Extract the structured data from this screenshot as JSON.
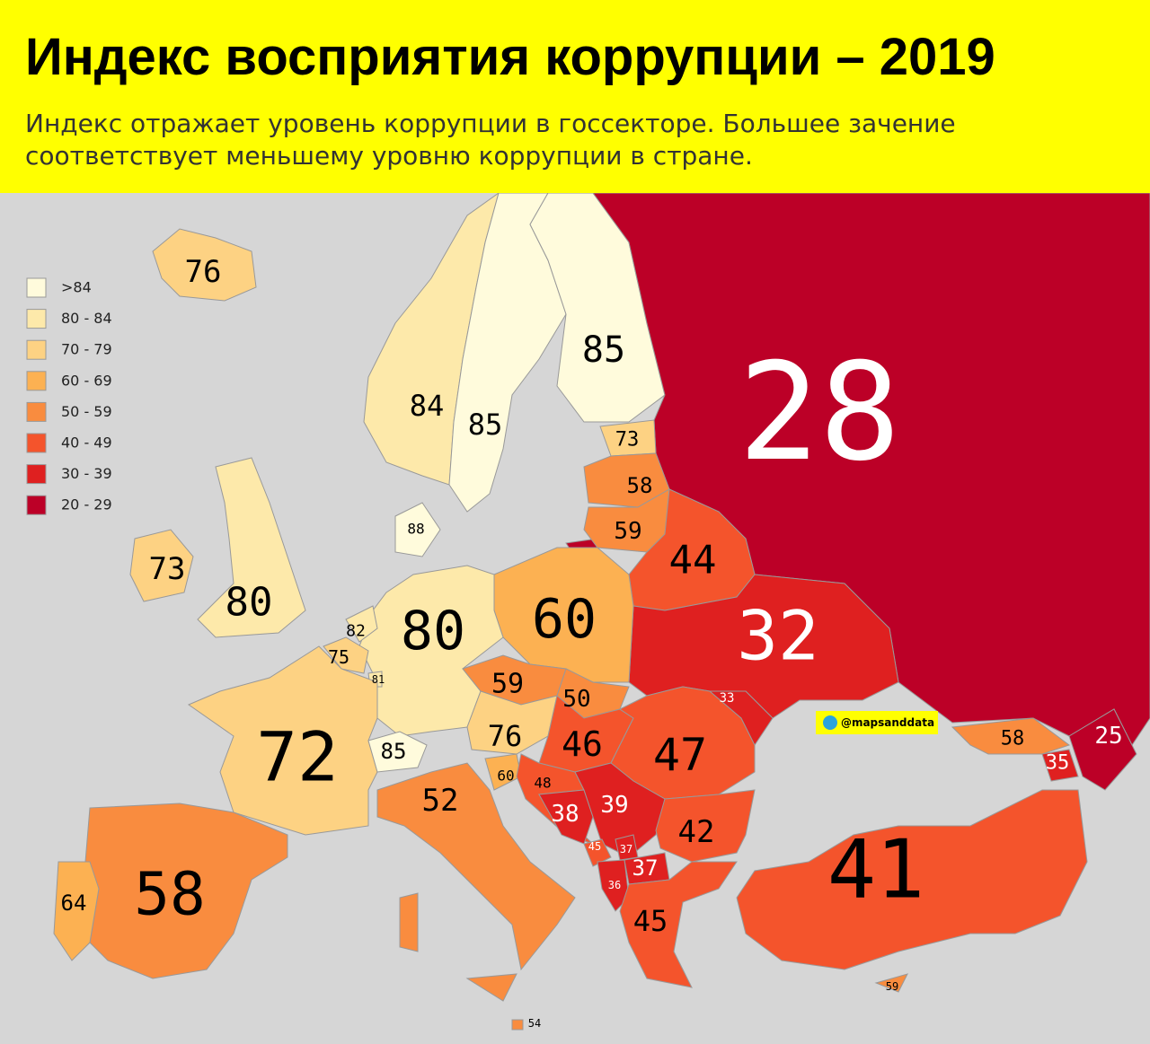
{
  "header": {
    "title": "Индекс восприятия коррупции – 2019",
    "subtitle": "Индекс отражает уровень коррупции в госсекторе. Большее зачение соответствует меньшему уровню коррупции в стране."
  },
  "legend": [
    {
      "label": ">84",
      "color": "#fffbdc"
    },
    {
      "label": "80 - 84",
      "color": "#fde9aa"
    },
    {
      "label": "70 - 79",
      "color": "#fdd283"
    },
    {
      "label": "60 - 69",
      "color": "#fcb152"
    },
    {
      "label": "50 - 59",
      "color": "#f98c3f"
    },
    {
      "label": "40 - 49",
      "color": "#f4542c"
    },
    {
      "label": "30 - 39",
      "color": "#df2020"
    },
    {
      "label": "20 - 29",
      "color": "#bc0027"
    }
  ],
  "regions": [
    {
      "value": "76",
      "color": "#fdd283"
    },
    {
      "value": "84",
      "color": "#fde9aa"
    },
    {
      "value": "85",
      "color": "#fffbdc"
    },
    {
      "value": "85",
      "color": "#fffbdc"
    },
    {
      "value": "28",
      "color": "#bc0027"
    },
    {
      "value": "73",
      "color": "#fdd283"
    },
    {
      "value": "58",
      "color": "#f98c3f"
    },
    {
      "value": "59",
      "color": "#f98c3f"
    },
    {
      "value": "44",
      "color": "#f4542c"
    },
    {
      "value": "32",
      "color": "#df2020"
    },
    {
      "value": "60",
      "color": "#fcb152"
    },
    {
      "value": "80",
      "color": "#fde9aa"
    },
    {
      "value": "88",
      "color": "#fffbdc"
    },
    {
      "value": "80",
      "color": "#fde9aa"
    },
    {
      "value": "73",
      "color": "#fdd283"
    },
    {
      "value": "82",
      "color": "#fde9aa"
    },
    {
      "value": "75",
      "color": "#fdd283"
    },
    {
      "value": "81",
      "color": "#fde9aa"
    },
    {
      "value": "72",
      "color": "#fdd283"
    },
    {
      "value": "85",
      "color": "#fffbdc"
    },
    {
      "value": "59",
      "color": "#f98c3f"
    },
    {
      "value": "50",
      "color": "#f98c3f"
    },
    {
      "value": "76",
      "color": "#fdd283"
    },
    {
      "value": "46",
      "color": "#f4542c"
    },
    {
      "value": "47",
      "color": "#f4542c"
    },
    {
      "value": "33",
      "color": "#df2020"
    },
    {
      "value": "60",
      "color": "#fcb152"
    },
    {
      "value": "48",
      "color": "#f4542c"
    },
    {
      "value": "52",
      "color": "#f98c3f"
    },
    {
      "value": "38",
      "color": "#df2020"
    },
    {
      "value": "39",
      "color": "#df2020"
    },
    {
      "value": "45",
      "color": "#f4542c"
    },
    {
      "value": "37",
      "color": "#df2020"
    },
    {
      "value": "42",
      "color": "#f4542c"
    },
    {
      "value": "37",
      "color": "#df2020"
    },
    {
      "value": "36",
      "color": "#df2020"
    },
    {
      "value": "45",
      "color": "#f4542c"
    },
    {
      "value": "41",
      "color": "#f4542c"
    },
    {
      "value": "58",
      "color": "#f98c3f"
    },
    {
      "value": "35",
      "color": "#df2020"
    },
    {
      "value": "25",
      "color": "#bc0027"
    },
    {
      "value": "58",
      "color": "#f98c3f"
    },
    {
      "value": "64",
      "color": "#fcb152"
    },
    {
      "value": "59",
      "color": "#f98c3f"
    },
    {
      "value": "54",
      "color": "#f98c3f"
    }
  ],
  "credit": "@mapsanddata"
}
